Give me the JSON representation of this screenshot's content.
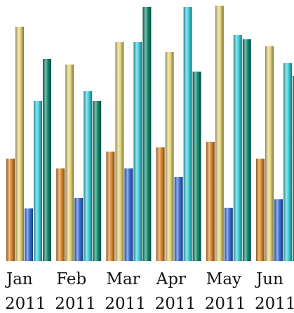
{
  "chart_data": {
    "type": "bar",
    "categories": [
      {
        "month": "Jan",
        "year": "2011"
      },
      {
        "month": "Feb",
        "year": "2011"
      },
      {
        "month": "Mar",
        "year": "2011"
      },
      {
        "month": "Apr",
        "year": "2011"
      },
      {
        "month": "May",
        "year": "2011"
      },
      {
        "month": "Jun",
        "year": "2011"
      }
    ],
    "series": [
      {
        "color": "#e08a2c",
        "values": [
          146,
          132,
          156,
          162,
          170,
          146
        ]
      },
      {
        "color": "#e6d47a",
        "values": [
          334,
          280,
          312,
          298,
          364,
          306
        ]
      },
      {
        "color": "#3a6fd8",
        "values": [
          75,
          90,
          132,
          120,
          76,
          88
        ]
      },
      {
        "color": "#3fd0dc",
        "values": [
          228,
          242,
          312,
          362,
          322,
          282
        ]
      },
      {
        "color": "#0e8a70",
        "values": [
          288,
          228,
          362,
          270,
          316,
          264
        ]
      }
    ],
    "xlabel": "",
    "ylabel": "",
    "ylim": [
      0,
      362
    ],
    "grid": false,
    "legend": "none"
  }
}
